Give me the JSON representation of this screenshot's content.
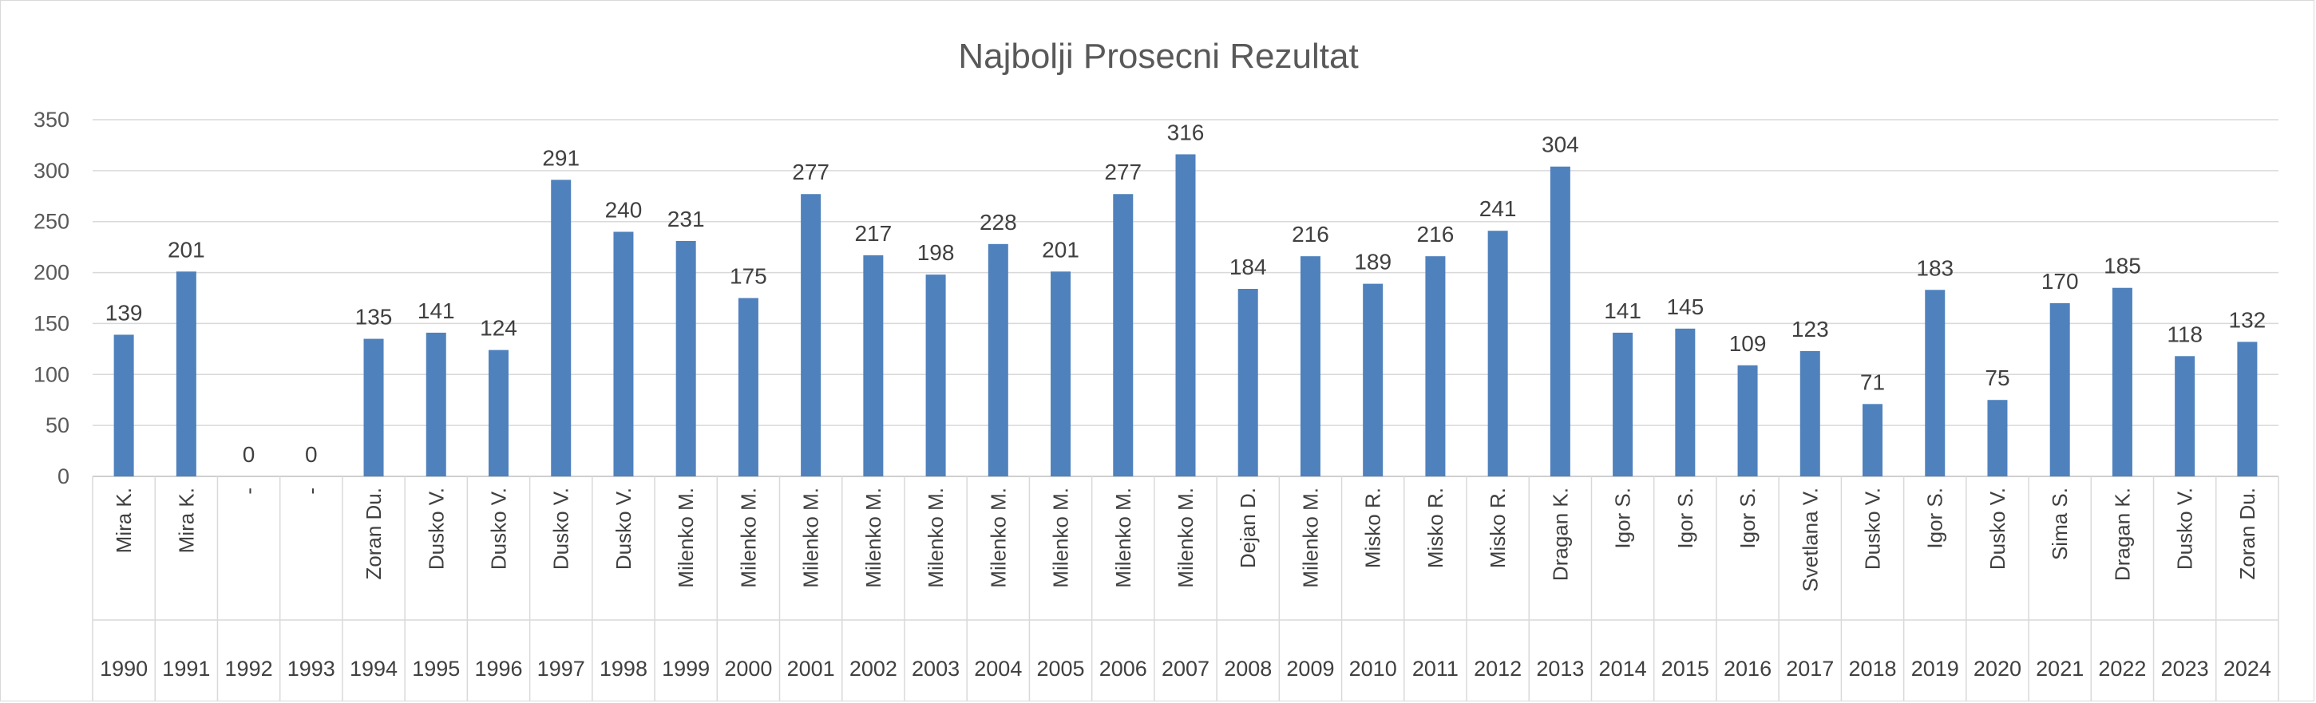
{
  "chart_data": {
    "type": "bar",
    "title": "Najbolji Prosecni Rezultat",
    "xlabel": "",
    "ylabel": "",
    "ylim": [
      0,
      350
    ],
    "yticks": [
      0,
      50,
      100,
      150,
      200,
      250,
      300,
      350
    ],
    "grid": true,
    "legend": "none",
    "bar_color": "#4f81bd",
    "years": [
      "1990",
      "1991",
      "1992",
      "1993",
      "1994",
      "1995",
      "1996",
      "1997",
      "1998",
      "1999",
      "2000",
      "2001",
      "2002",
      "2003",
      "2004",
      "2005",
      "2006",
      "2007",
      "2008",
      "2009",
      "2010",
      "2011",
      "2012",
      "2013",
      "2014",
      "2015",
      "2016",
      "2017",
      "2018",
      "2019",
      "2020",
      "2021",
      "2022",
      "2023",
      "2024"
    ],
    "names": [
      "Mira K.",
      "Mira K.",
      "-",
      "-",
      "Zoran Du.",
      "Dusko V.",
      "Dusko V.",
      "Dusko V.",
      "Dusko V.",
      "Milenko M.",
      "Milenko M.",
      "Milenko M.",
      "Milenko M.",
      "Milenko M.",
      "Milenko M.",
      "Milenko M.",
      "Milenko M.",
      "Milenko M.",
      "Dejan D.",
      "Milenko M.",
      "Misko R.",
      "Misko R.",
      "Misko R.",
      "Dragan K.",
      "Igor S.",
      "Igor S.",
      "Igor S.",
      "Svetlana V.",
      "Dusko V.",
      "Igor S.",
      "Dusko V.",
      "Sima S.",
      "Dragan K.",
      "Dusko V.",
      "Zoran Du."
    ],
    "values": [
      139,
      201,
      0,
      0,
      135,
      141,
      124,
      291,
      240,
      231,
      175,
      277,
      217,
      198,
      228,
      201,
      277,
      316,
      184,
      216,
      189,
      216,
      241,
      304,
      141,
      145,
      109,
      123,
      71,
      183,
      75,
      170,
      185,
      118,
      132
    ]
  }
}
